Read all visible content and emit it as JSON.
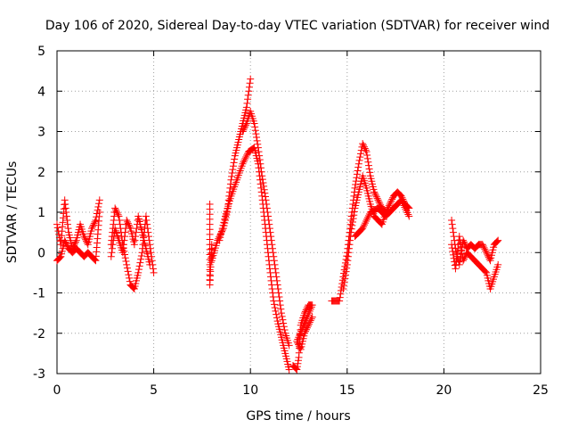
{
  "chart_data": {
    "type": "scatter",
    "title": "Day 106 of 2020, Sidereal Day-to-day VTEC variation (SDTVAR) for receiver wind",
    "xlabel": "GPS time / hours",
    "ylabel": "SDTVAR / TECUs",
    "xlim": [
      0,
      25
    ],
    "ylim": [
      -3,
      5
    ],
    "xticks": [
      "0",
      "5",
      "10",
      "15",
      "20",
      "25"
    ],
    "yticks": [
      "-3",
      "-2",
      "-1",
      "0",
      "1",
      "2",
      "3",
      "4",
      "5"
    ],
    "grid": true,
    "marker": "+",
    "color": "#ff0000",
    "series": [
      {
        "name": "SDTVAR",
        "segments": [
          {
            "x": [
              0.0,
              0.2,
              0.4,
              0.6,
              0.8,
              1.0,
              1.2,
              1.4,
              1.6,
              1.8,
              2.0,
              2.2
            ],
            "y": [
              0.7,
              0.2,
              1.3,
              0.5,
              0.1,
              0.3,
              0.7,
              0.4,
              0.2,
              0.6,
              0.8,
              1.3
            ]
          },
          {
            "x": [
              0.0,
              0.2,
              0.4,
              0.6,
              0.8,
              1.0,
              1.2,
              1.4,
              1.6,
              1.8,
              2.0,
              2.2
            ],
            "y": [
              -0.2,
              -0.1,
              0.3,
              0.1,
              0.0,
              0.1,
              0.0,
              -0.1,
              0.0,
              -0.1,
              -0.2,
              1.0
            ]
          },
          {
            "x": [
              2.8,
              3.0,
              3.2,
              3.4,
              3.6,
              3.8,
              4.0,
              4.2,
              4.4,
              4.6,
              4.8,
              5.0
            ],
            "y": [
              0.2,
              1.1,
              0.9,
              0.2,
              -0.3,
              -0.8,
              -0.9,
              -0.5,
              0.0,
              0.9,
              0.2,
              -0.5
            ]
          },
          {
            "x": [
              2.8,
              3.0,
              3.2,
              3.4,
              3.6,
              3.8,
              4.0,
              4.2,
              4.4,
              4.6,
              4.8
            ],
            "y": [
              -0.1,
              0.6,
              0.3,
              0.0,
              0.8,
              0.6,
              0.2,
              0.9,
              0.5,
              0.1,
              -0.3
            ]
          },
          {
            "x": [
              7.9,
              7.9,
              8.0,
              8.0,
              8.3,
              8.6,
              8.8,
              9.0,
              9.2,
              9.4,
              9.6,
              9.8,
              10.0
            ],
            "y": [
              1.2,
              -0.8,
              0.2,
              -0.2,
              0.3,
              0.6,
              1.0,
              1.8,
              2.4,
              2.8,
              3.2,
              3.6,
              4.3
            ]
          },
          {
            "x": [
              8.4,
              8.7,
              9.0,
              9.3,
              9.6,
              9.9,
              10.2,
              10.4,
              10.6,
              10.8,
              11.0,
              11.2,
              11.4,
              11.6,
              11.8,
              12.0
            ],
            "y": [
              0.3,
              0.9,
              1.4,
              1.8,
              2.2,
              2.5,
              2.6,
              2.2,
              1.4,
              0.5,
              -0.4,
              -1.2,
              -1.7,
              -2.1,
              -2.5,
              -2.9
            ]
          },
          {
            "x": [
              9.6,
              9.8,
              10.0,
              10.2,
              10.4,
              10.6,
              10.8,
              11.0,
              11.2,
              11.4,
              11.6,
              11.8,
              12.0
            ],
            "y": [
              3.0,
              3.2,
              3.5,
              3.2,
              2.6,
              1.9,
              1.3,
              0.6,
              -0.1,
              -0.8,
              -1.5,
              -2.0,
              -2.3
            ]
          },
          {
            "x": [
              12.2,
              12.4,
              12.5,
              12.6,
              12.8,
              13.0,
              13.2,
              12.4,
              12.6,
              12.8,
              13.2
            ],
            "y": [
              -2.8,
              -2.9,
              -2.6,
              -1.8,
              -1.5,
              -1.3,
              -1.3,
              -2.2,
              -2.4,
              -2.0,
              -1.6
            ]
          },
          {
            "x": [
              14.2,
              14.6,
              14.8,
              15.0,
              15.2,
              15.4,
              15.6,
              15.8,
              16.0,
              16.2,
              16.4,
              16.6,
              16.8,
              17.0
            ],
            "y": [
              -1.2,
              -1.2,
              -0.6,
              0.0,
              0.8,
              1.6,
              2.2,
              2.7,
              2.5,
              1.9,
              1.5,
              1.3,
              1.1,
              1.0
            ]
          },
          {
            "x": [
              14.8,
              15.0,
              15.2,
              15.4,
              15.6,
              15.8,
              16.0,
              16.2,
              16.4,
              16.6,
              16.8,
              17.0,
              17.2,
              17.4,
              17.6,
              17.8,
              18.0,
              18.2
            ],
            "y": [
              -0.9,
              -0.3,
              0.5,
              1.1,
              1.5,
              1.9,
              1.6,
              1.2,
              0.9,
              0.8,
              0.7,
              1.0,
              1.2,
              1.4,
              1.5,
              1.4,
              1.2,
              1.1
            ]
          },
          {
            "x": [
              15.4,
              15.8,
              16.2,
              16.6,
              17.0,
              17.4,
              17.8,
              18.2
            ],
            "y": [
              0.4,
              0.6,
              1.0,
              1.1,
              0.9,
              1.1,
              1.3,
              0.9
            ]
          },
          {
            "x": [
              20.4,
              20.6,
              20.8,
              21.0,
              21.2,
              21.4,
              21.6,
              21.8,
              22.0,
              22.2,
              22.4,
              22.6,
              22.8
            ],
            "y": [
              0.8,
              0.1,
              -0.3,
              0.3,
              0.1,
              0.2,
              0.1,
              0.2,
              0.2,
              0.0,
              -0.2,
              0.2,
              0.3
            ]
          },
          {
            "x": [
              20.4,
              20.6,
              20.8,
              21.0,
              21.2,
              22.2,
              22.4,
              22.6,
              22.8
            ],
            "y": [
              0.2,
              -0.4,
              0.4,
              -0.2,
              0.0,
              -0.5,
              -0.9,
              -0.6,
              -0.3
            ]
          }
        ]
      }
    ]
  }
}
